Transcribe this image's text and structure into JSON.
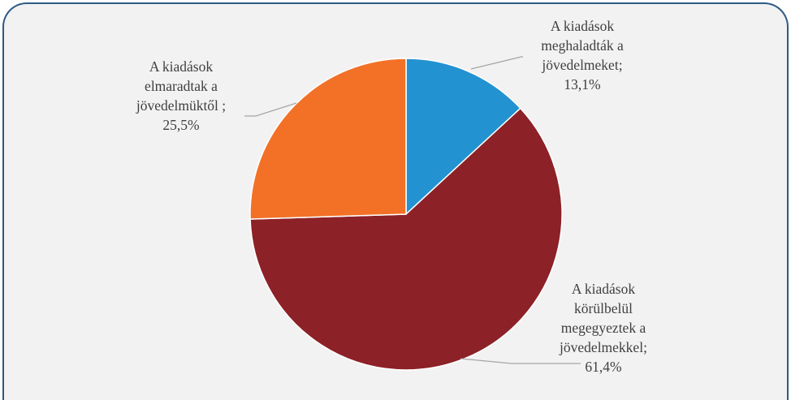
{
  "chart_data": {
    "type": "pie",
    "slices": [
      {
        "label_lines": [
          "A kiadások",
          "meghaladták a",
          "jövedelmeket;",
          "13,1%"
        ],
        "value": 13.1,
        "color": "#2392d1"
      },
      {
        "label_lines": [
          "A kiadások",
          "körülbelül",
          "megegyeztek a",
          "jövedelmekkel;",
          "61,4%"
        ],
        "value": 61.4,
        "color": "#8c2127"
      },
      {
        "label_lines": [
          "A kiadások",
          "elmaradtak a",
          "jövedelmüktől ;",
          "25,5%"
        ],
        "value": 25.5,
        "color": "#f27127"
      }
    ],
    "slice_border_color": "#ffffff",
    "leader_line_color": "#a6a6a6",
    "frame_border_color": "#2e5b85",
    "background_color": "#f2f2f2"
  }
}
